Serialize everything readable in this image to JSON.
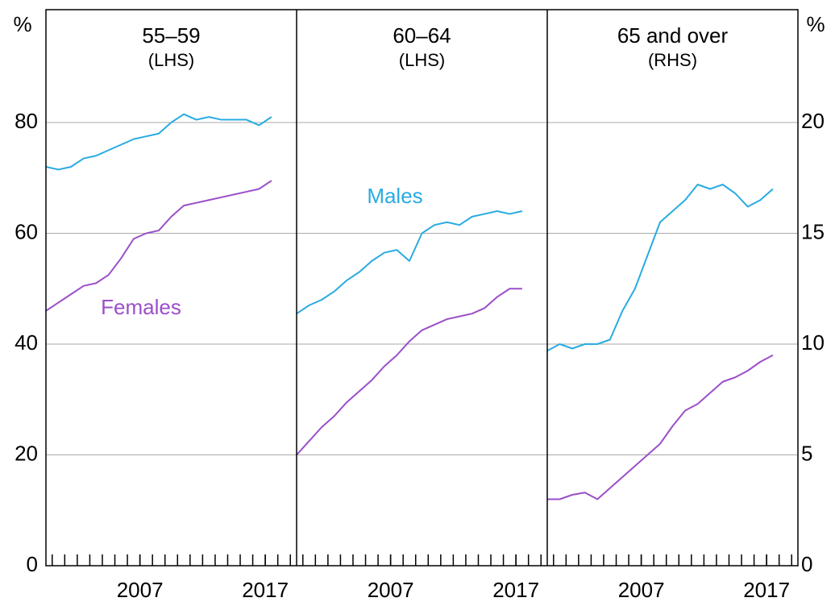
{
  "chart_data": {
    "type": "line",
    "y_label": "%",
    "y2_label": "%",
    "xlim": [
      1999.5,
      2019.5
    ],
    "xticks": [
      2007,
      2017
    ],
    "xminorticks": [
      2000,
      2001,
      2002,
      2003,
      2004,
      2005,
      2006,
      2007,
      2008,
      2009,
      2010,
      2011,
      2012,
      2013,
      2014,
      2015,
      2016,
      2017,
      2018,
      2019
    ],
    "ylim": [
      0,
      100
    ],
    "yticks": [
      0,
      20,
      40,
      60,
      80
    ],
    "y2lim": [
      0,
      25
    ],
    "y2ticks": [
      0,
      5,
      10,
      15,
      20
    ],
    "grid": true,
    "x": [
      1999.5,
      2000.5,
      2001.5,
      2002.5,
      2003.5,
      2004.5,
      2005.5,
      2006.5,
      2007.5,
      2008.5,
      2009.5,
      2010.5,
      2011.5,
      2012.5,
      2013.5,
      2014.5,
      2015.5,
      2016.5,
      2017.5
    ],
    "panels": [
      {
        "title": "55–59",
        "subtitle": "(LHS)",
        "axis": "y",
        "series": [
          {
            "color": "#29abe2",
            "values": [
              72,
              71.5,
              72,
              73.5,
              74,
              75,
              76,
              77,
              77.5,
              78,
              80,
              81.5,
              80.5,
              81,
              80.5,
              80.5,
              80.5,
              79.5,
              81
            ]
          },
          {
            "color": "#9b4fc9",
            "values": [
              46,
              47.5,
              49,
              50.5,
              51,
              52.5,
              55.5,
              59,
              60,
              60.5,
              63,
              65,
              65.5,
              66,
              66.5,
              67,
              67.5,
              68,
              69.5
            ]
          }
        ]
      },
      {
        "title": "60–64",
        "subtitle": "(LHS)",
        "axis": "y",
        "series": [
          {
            "color": "#29abe2",
            "values": [
              45.5,
              47,
              48,
              49.5,
              51.5,
              53,
              55,
              56.5,
              57,
              55,
              60,
              61.5,
              62,
              61.5,
              63,
              63.5,
              64,
              63.5,
              64
            ]
          },
          {
            "color": "#9b4fc9",
            "values": [
              20,
              22.5,
              25,
              27,
              29.5,
              31.5,
              33.5,
              36,
              38,
              40.5,
              42.5,
              43.5,
              44.5,
              45,
              45.5,
              46.5,
              48.5,
              50,
              50
            ]
          }
        ]
      },
      {
        "title": "65 and over",
        "subtitle": "(RHS)",
        "axis": "y2",
        "series": [
          {
            "color": "#29abe2",
            "values": [
              9.7,
              10,
              9.8,
              10,
              10,
              10.2,
              11.5,
              12.5,
              14,
              15.5,
              16,
              16.5,
              17.2,
              17,
              17.2,
              16.8,
              16.2,
              16.5,
              17
            ]
          },
          {
            "color": "#9b4fc9",
            "values": [
              3,
              3,
              3.2,
              3.3,
              3,
              3.5,
              4,
              4.5,
              5,
              5.5,
              6.3,
              7,
              7.3,
              7.8,
              8.3,
              8.5,
              8.8,
              9.2,
              9.5
            ]
          }
        ]
      }
    ],
    "annotations": [
      {
        "text": "Males",
        "color": "#29abe2"
      },
      {
        "text": "Females",
        "color": "#9b4fc9"
      }
    ]
  }
}
